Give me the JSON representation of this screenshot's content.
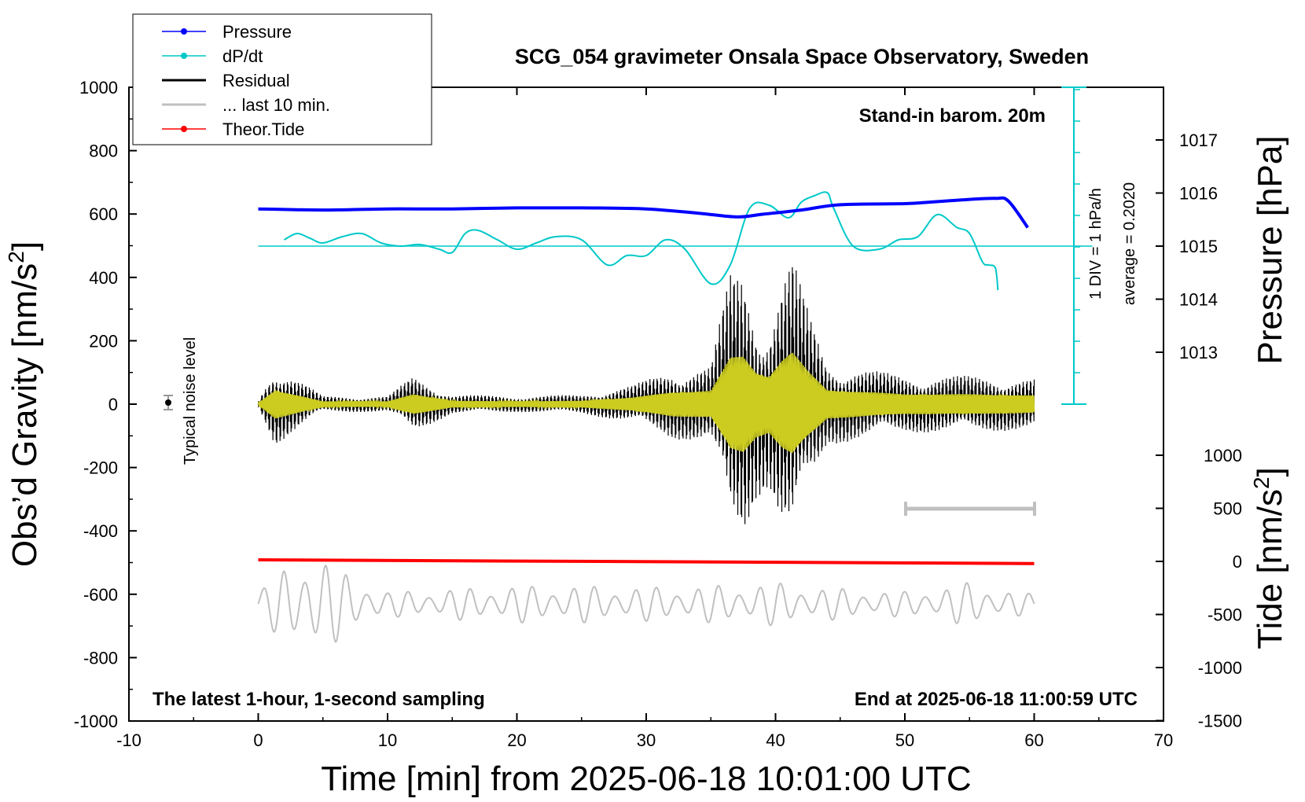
{
  "title": "SCG_054 gravimeter Onsala Space Observatory, Sweden",
  "annotations": {
    "barometer": "Stand-in barom. 20m",
    "sampling": "The latest 1-hour, 1-second sampling",
    "end_time": "End at 2025-06-18 11:00:59 UTC",
    "noise": "Typical noise level",
    "div_scale": "1 DIV = 1 hPa/h",
    "average": "average = 0.2020"
  },
  "legend": [
    {
      "label": "Pressure",
      "color": "#0000ff",
      "marker": true
    },
    {
      "label": "dP/dt",
      "color": "#00c8c8",
      "marker": true
    },
    {
      "label": "Residual",
      "color": "#000000",
      "marker": false
    },
    {
      "label": "... last 10 min.",
      "color": "#c0c0c0",
      "marker": false
    },
    {
      "label": "Theor.Tide",
      "color": "#ff0000",
      "marker": true
    }
  ],
  "axes": {
    "x": {
      "label": "Time [min] from 2025-06-18 10:01:00 UTC",
      "range": [
        -10,
        70
      ],
      "ticks": [
        "-10",
        "0",
        "10",
        "20",
        "30",
        "40",
        "50",
        "60",
        "70"
      ]
    },
    "y_left": {
      "label": "Obs'd Gravity [nm/s²]",
      "label_main": "Obs’d Gravity [nm/s",
      "label_sup": "2",
      "label_end": "]",
      "range": [
        -1000,
        1000
      ],
      "ticks": [
        "1000",
        "800",
        "600",
        "400",
        "200",
        "0",
        "-200",
        "-400",
        "-600",
        "-800",
        "-1000"
      ]
    },
    "y_right_pressure": {
      "label": "Pressure [hPa]",
      "ticks": [
        "1017",
        "1016",
        "1015",
        "1014",
        "1013"
      ]
    },
    "y_right_tide": {
      "label": "Tide [nm/s²]",
      "label_main": "Tide [nm/s",
      "label_sup": "2",
      "label_end": "]",
      "ticks": [
        "1000",
        "500",
        "0",
        "-500",
        "-1000",
        "-1500"
      ]
    }
  },
  "chart_data": {
    "type": "line",
    "title": "SCG_054 gravimeter Onsala Space Observatory, Sweden",
    "xlabel": "Time [min] from 2025-06-18 10:01:00 UTC",
    "xlim": [
      -10,
      70
    ],
    "ylim": [
      -1000,
      1000
    ],
    "grid": false,
    "legend_position": "top-left",
    "series": [
      {
        "name": "Pressure",
        "color": "#0000ff",
        "axis": "pressure_hPa",
        "x": [
          0,
          5,
          10,
          15,
          20,
          25,
          30,
          34,
          37,
          39,
          42,
          45,
          50,
          52,
          55,
          57,
          58,
          59.5
        ],
        "values": [
          1015.7,
          1015.68,
          1015.7,
          1015.7,
          1015.72,
          1015.72,
          1015.7,
          1015.62,
          1015.55,
          1015.6,
          1015.68,
          1015.78,
          1015.8,
          1015.83,
          1015.88,
          1015.9,
          1015.85,
          1015.35
        ]
      },
      {
        "name": "dP/dt",
        "color": "#00c8c8",
        "axis": "div_hPa_per_h",
        "x": [
          2,
          3,
          4,
          5,
          6.5,
          8,
          9.5,
          11,
          12.5,
          14,
          15,
          16,
          17,
          18.5,
          20,
          21.5,
          23,
          25,
          27,
          28.5,
          30,
          31.5,
          33,
          35,
          36.5,
          38,
          39.5,
          41,
          42,
          43,
          44,
          44.5,
          46,
          48,
          49.5,
          51,
          52.5,
          54,
          55,
          56,
          56.5,
          57,
          57.2
        ],
        "values": [
          0.2,
          0.4,
          0.25,
          0.1,
          0.3,
          0.4,
          0.1,
          0.0,
          0.05,
          -0.1,
          -0.2,
          0.4,
          0.5,
          0.2,
          -0.1,
          0.1,
          0.3,
          0.2,
          -0.6,
          -0.3,
          -0.3,
          0.2,
          -0.1,
          -1.2,
          -0.6,
          1.2,
          1.3,
          0.9,
          1.4,
          1.6,
          1.7,
          1.2,
          0.0,
          -0.1,
          0.2,
          0.3,
          1.0,
          0.6,
          0.4,
          -0.5,
          -0.6,
          -0.7,
          -1.4
        ]
      },
      {
        "name": "Residual",
        "color": "#000000",
        "axis": "gravity_nm_s2",
        "x": [
          0,
          1.3,
          5,
          10,
          12,
          15,
          20,
          25,
          29,
          32,
          35,
          36.5,
          37.5,
          38.5,
          39.5,
          40.5,
          41.3,
          42.5,
          44,
          47,
          50,
          55,
          60
        ],
        "amplitude": [
          10,
          130,
          25,
          25,
          90,
          30,
          25,
          30,
          60,
          110,
          120,
          420,
          440,
          300,
          260,
          400,
          470,
          300,
          130,
          110,
          90,
          90,
          80
        ]
      },
      {
        "name": "... last 10 min.",
        "color": "#c0c0c0",
        "axis": "gravity_nm_s2_offset",
        "x": [
          0,
          2,
          4,
          6,
          10,
          15,
          20,
          25,
          30,
          35,
          40,
          45,
          50,
          55,
          60
        ],
        "amplitude": [
          40,
          120,
          180,
          120,
          40,
          50,
          60,
          60,
          55,
          60,
          70,
          50,
          40,
          70,
          30
        ]
      },
      {
        "name": "Theor.Tide",
        "color": "#ff0000",
        "axis": "tide_nm_s2",
        "x": [
          0,
          60
        ],
        "values": [
          15,
          -20
        ]
      }
    ]
  }
}
